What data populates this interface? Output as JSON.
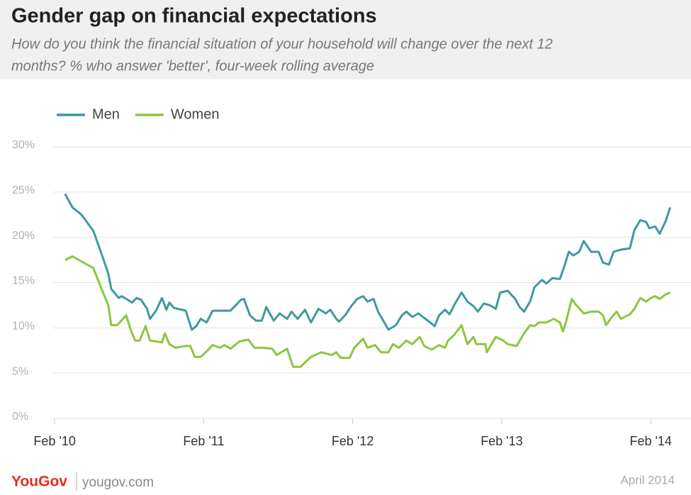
{
  "chart_data": {
    "type": "line",
    "title": "Gender gap on financial expectations",
    "subtitle": [
      "How do you think the financial situation of your household will change over the next 12",
      "months? % who answer 'better', four-week rolling average"
    ],
    "xlim": [
      2010.07,
      2014.35
    ],
    "xticks": [
      {
        "value": 2010.08,
        "label": "Feb '10"
      },
      {
        "value": 2011.08,
        "label": "Feb '11"
      },
      {
        "value": 2012.08,
        "label": "Feb '12"
      },
      {
        "value": 2013.08,
        "label": "Feb '13"
      },
      {
        "value": 2014.08,
        "label": "Feb '14"
      }
    ],
    "ylim": [
      0,
      30
    ],
    "yticks": [
      {
        "value": 0,
        "label": "0%"
      },
      {
        "value": 5,
        "label": "5%"
      },
      {
        "value": 10,
        "label": "10%"
      },
      {
        "value": 15,
        "label": "15%"
      },
      {
        "value": 20,
        "label": "20%"
      },
      {
        "value": 25,
        "label": "25%"
      },
      {
        "value": 30,
        "label": "30%"
      }
    ],
    "grid": true,
    "legend": "top-left",
    "series": [
      {
        "name": "Men",
        "color": "#3f9a9c",
        "x": [
          2010.15,
          2010.2,
          2010.26,
          2010.34,
          2010.39,
          2010.44,
          2010.46,
          2010.51,
          2010.53,
          2010.58,
          2010.6,
          2010.63,
          2010.66,
          2010.7,
          2010.72,
          2010.76,
          2010.8,
          2010.83,
          2010.85,
          2010.88,
          2010.96,
          2011.0,
          2011.03,
          2011.06,
          2011.1,
          2011.14,
          2011.19,
          2011.26,
          2011.29,
          2011.33,
          2011.35,
          2011.39,
          2011.43,
          2011.47,
          2011.5,
          2011.55,
          2011.59,
          2011.64,
          2011.67,
          2011.71,
          2011.76,
          2011.8,
          2011.85,
          2011.9,
          2011.93,
          2011.97,
          2011.99,
          2012.03,
          2012.07,
          2012.11,
          2012.15,
          2012.18,
          2012.22,
          2012.25,
          2012.32,
          2012.37,
          2012.41,
          2012.44,
          2012.48,
          2012.52,
          2012.56,
          2012.6,
          2012.63,
          2012.66,
          2012.7,
          2012.73,
          2012.76,
          2012.81,
          2012.85,
          2012.89,
          2012.92,
          2012.96,
          2013.0,
          2013.04,
          2013.07,
          2013.12,
          2013.17,
          2013.2,
          2013.23,
          2013.27,
          2013.3,
          2013.35,
          2013.38,
          2013.42,
          2013.47,
          2013.5,
          2013.53,
          2013.56,
          2013.6,
          2013.63,
          2013.68,
          2013.73,
          2013.76,
          2013.8,
          2013.83,
          2013.87,
          2013.94,
          2013.97,
          2014.01,
          2014.05,
          2014.07,
          2014.11,
          2014.14,
          2014.18,
          2014.21
        ],
        "values": [
          24.8,
          23.3,
          22.5,
          20.7,
          18.4,
          16.0,
          14.3,
          13.3,
          13.5,
          13.0,
          12.8,
          13.3,
          13.1,
          12.1,
          11.0,
          11.9,
          13.3,
          12.0,
          12.8,
          12.2,
          11.9,
          9.8,
          10.2,
          11.0,
          10.6,
          11.9,
          11.9,
          11.9,
          12.4,
          13.1,
          13.2,
          11.4,
          10.8,
          10.8,
          12.3,
          10.8,
          11.6,
          11.0,
          11.8,
          11.0,
          12.0,
          10.6,
          12.1,
          11.6,
          12.0,
          11.0,
          10.7,
          11.4,
          12.4,
          13.2,
          13.5,
          12.9,
          13.2,
          11.8,
          9.8,
          10.3,
          11.4,
          11.8,
          11.2,
          11.6,
          11.1,
          10.6,
          10.2,
          11.4,
          12.0,
          11.5,
          12.5,
          13.9,
          12.9,
          12.4,
          11.8,
          12.7,
          12.5,
          12.1,
          13.9,
          14.1,
          13.2,
          12.3,
          11.8,
          12.9,
          14.5,
          15.3,
          14.9,
          15.5,
          15.4,
          16.8,
          18.4,
          18.0,
          18.4,
          19.6,
          18.4,
          18.4,
          17.2,
          17.0,
          18.4,
          18.6,
          18.8,
          20.8,
          21.9,
          21.7,
          21.0,
          21.2,
          20.4,
          21.8,
          23.3
        ]
      },
      {
        "name": "Women",
        "color": "#8cc63f",
        "x": [
          2010.15,
          2010.2,
          2010.34,
          2010.39,
          2010.44,
          2010.46,
          2010.5,
          2010.56,
          2010.59,
          2010.62,
          2010.65,
          2010.69,
          2010.72,
          2010.76,
          2010.8,
          2010.82,
          2010.85,
          2010.89,
          2010.96,
          2010.99,
          2011.02,
          2011.06,
          2011.1,
          2011.14,
          2011.19,
          2011.22,
          2011.26,
          2011.32,
          2011.38,
          2011.42,
          2011.48,
          2011.54,
          2011.57,
          2011.61,
          2011.64,
          2011.66,
          2011.68,
          2011.73,
          2011.8,
          2011.87,
          2011.94,
          2011.97,
          2012.0,
          2012.06,
          2012.09,
          2012.15,
          2012.18,
          2012.23,
          2012.27,
          2012.32,
          2012.35,
          2012.39,
          2012.44,
          2012.48,
          2012.53,
          2012.56,
          2012.61,
          2012.66,
          2012.7,
          2012.72,
          2012.76,
          2012.81,
          2012.85,
          2012.89,
          2012.91,
          2012.97,
          2012.98,
          2013.04,
          2013.09,
          2013.12,
          2013.18,
          2013.23,
          2013.27,
          2013.3,
          2013.33,
          2013.38,
          2013.43,
          2013.47,
          2013.49,
          2013.51,
          2013.55,
          2013.58,
          2013.63,
          2013.68,
          2013.73,
          2013.76,
          2013.78,
          2013.81,
          2013.85,
          2013.88,
          2013.94,
          2013.97,
          2014.01,
          2014.05,
          2014.08,
          2014.11,
          2014.14,
          2014.18,
          2014.21
        ],
        "values": [
          17.5,
          17.9,
          16.6,
          14.5,
          12.5,
          10.3,
          10.3,
          11.4,
          9.8,
          8.6,
          8.6,
          10.2,
          8.6,
          8.5,
          8.4,
          9.4,
          8.2,
          7.8,
          8.0,
          8.0,
          6.8,
          6.8,
          7.4,
          8.1,
          7.8,
          8.1,
          7.7,
          8.5,
          8.7,
          7.8,
          7.8,
          7.7,
          7.0,
          7.4,
          7.7,
          6.7,
          5.7,
          5.7,
          6.8,
          7.3,
          7.0,
          7.3,
          6.7,
          6.7,
          7.8,
          8.8,
          7.8,
          8.1,
          7.3,
          7.3,
          8.2,
          7.8,
          8.6,
          8.2,
          9.0,
          8.0,
          7.6,
          8.1,
          7.8,
          8.6,
          9.2,
          10.3,
          8.2,
          9.0,
          8.2,
          8.2,
          7.3,
          9.0,
          8.6,
          8.2,
          8.0,
          9.4,
          10.3,
          10.2,
          10.6,
          10.6,
          11.0,
          10.6,
          9.6,
          10.6,
          13.2,
          12.5,
          11.6,
          11.8,
          11.8,
          11.4,
          10.3,
          11.0,
          11.8,
          11.0,
          11.5,
          12.1,
          13.3,
          12.9,
          13.3,
          13.5,
          13.2,
          13.7,
          13.9
        ]
      }
    ],
    "footer": {
      "logo": "YouGov",
      "site": "yougov.com",
      "date": "April 2014"
    }
  }
}
